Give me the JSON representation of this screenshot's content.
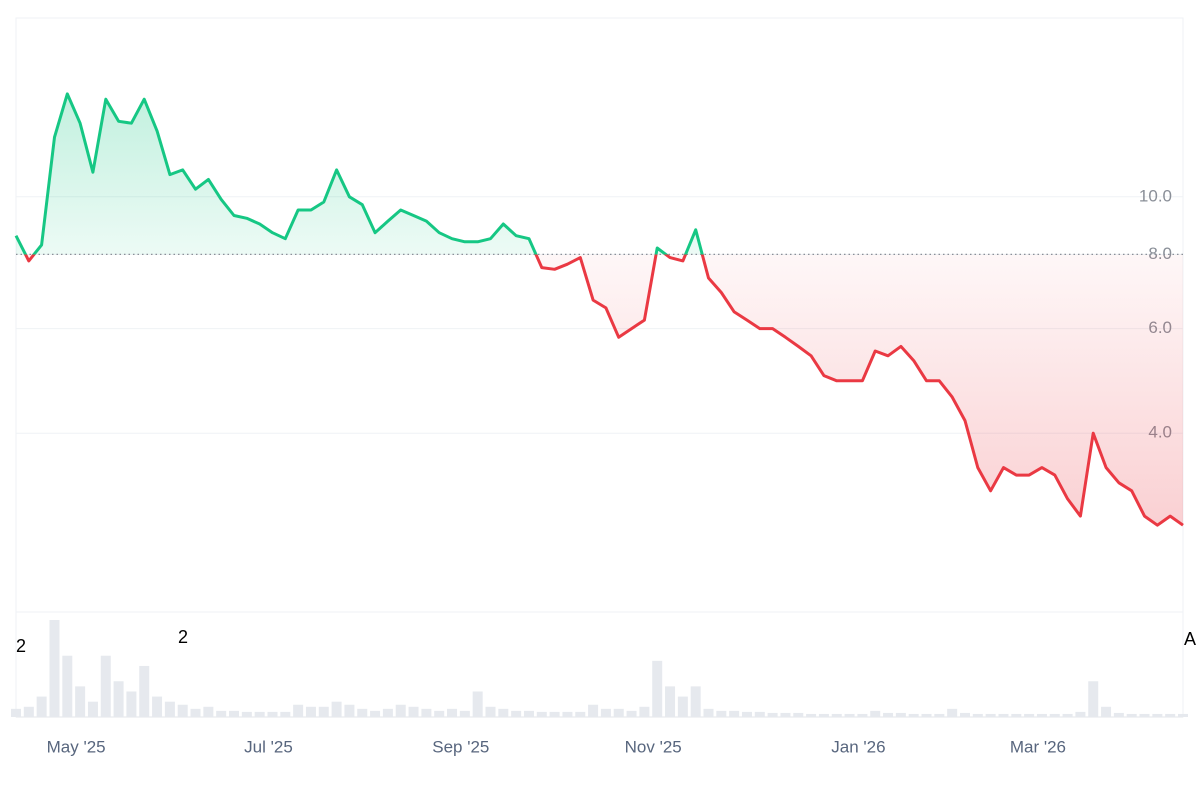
{
  "chart_data": {
    "type": "line",
    "categories": [
      null,
      null,
      null,
      null,
      null,
      "May '25",
      null,
      null,
      null,
      null,
      null,
      null,
      null,
      null,
      null,
      null,
      null,
      null,
      null,
      null,
      "Jul '25",
      null,
      null,
      null,
      null,
      null,
      null,
      null,
      null,
      null,
      null,
      null,
      null,
      null,
      null,
      "Sep '25",
      null,
      null,
      null,
      null,
      null,
      null,
      null,
      null,
      null,
      null,
      null,
      null,
      null,
      null,
      "Nov '25",
      null,
      null,
      null,
      null,
      null,
      null,
      null,
      null,
      null,
      null,
      null,
      null,
      null,
      null,
      null,
      "Jan '26",
      null,
      null,
      null,
      null,
      null,
      null,
      null,
      null,
      null,
      null,
      null,
      null,
      null,
      "Mar '26",
      null,
      null,
      null,
      null,
      null,
      null,
      null,
      null,
      null,
      null,
      null
    ],
    "values": [
      8.6,
      7.8,
      8.3,
      12.6,
      14.9,
      13.3,
      11.0,
      14.6,
      13.4,
      13.3,
      14.6,
      12.9,
      10.9,
      11.1,
      10.3,
      10.7,
      9.9,
      9.3,
      9.2,
      9.0,
      8.7,
      8.5,
      9.5,
      9.5,
      9.8,
      11.1,
      10.0,
      9.7,
      8.7,
      9.1,
      9.5,
      9.3,
      9.1,
      8.7,
      8.5,
      8.4,
      8.4,
      8.5,
      9.0,
      8.6,
      8.5,
      7.6,
      7.55,
      7.7,
      7.9,
      6.7,
      6.5,
      5.8,
      6.0,
      6.2,
      8.2,
      7.9,
      7.8,
      8.8,
      7.3,
      6.9,
      6.4,
      6.2,
      6.0,
      6.0,
      5.8,
      5.6,
      5.4,
      5.0,
      4.9,
      4.9,
      4.9,
      5.5,
      5.4,
      5.6,
      5.3,
      4.9,
      4.9,
      4.6,
      4.2,
      3.5,
      3.2,
      3.5,
      3.4,
      3.4,
      3.5,
      3.4,
      3.1,
      2.9,
      4.0,
      3.5,
      3.3,
      3.2,
      2.9,
      2.8,
      2.9,
      2.8
    ],
    "volume": [
      8,
      10,
      20,
      95,
      60,
      30,
      15,
      60,
      35,
      25,
      50,
      20,
      15,
      12,
      8,
      10,
      6,
      6,
      5,
      5,
      5,
      5,
      12,
      10,
      10,
      15,
      12,
      8,
      6,
      8,
      12,
      10,
      8,
      6,
      8,
      6,
      25,
      10,
      8,
      6,
      6,
      5,
      5,
      5,
      5,
      12,
      8,
      8,
      6,
      10,
      55,
      30,
      20,
      30,
      8,
      6,
      6,
      5,
      5,
      4,
      4,
      4,
      3,
      3,
      3,
      3,
      3,
      6,
      4,
      4,
      3,
      3,
      3,
      8,
      4,
      3,
      3,
      3,
      3,
      3,
      3,
      3,
      3,
      5,
      35,
      10,
      4,
      3,
      3,
      3,
      3,
      3
    ],
    "ylim": [
      2,
      20
    ],
    "yticks": [
      {
        "value": 4,
        "label": "4.0"
      },
      {
        "value": 6,
        "label": "6.0"
      },
      {
        "value": 8,
        "label": "8.0"
      },
      {
        "value": 10,
        "label": "10.0"
      }
    ],
    "log_scale": true,
    "grid": true,
    "baseline": 8,
    "up_color": "#16c784",
    "down_color": "#ea3943",
    "volume_color": "#e6e9ee",
    "annotations": [
      "2",
      "2",
      "A"
    ]
  }
}
